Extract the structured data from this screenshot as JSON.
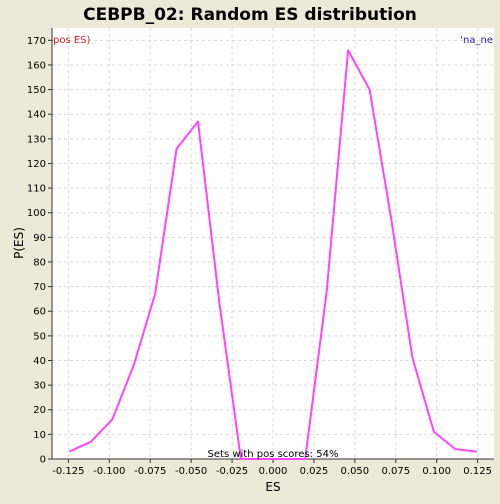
{
  "colors": {
    "background": "#ece9d8",
    "plot_background": "#ffffff",
    "line": "#ff44ff",
    "grid": "#d8d8d8",
    "left_label": "#cc2222",
    "right_label": "#2222bb",
    "axis": "#333333"
  },
  "chart_data": {
    "type": "line",
    "title": "CEBPB_02: Random ES distribution",
    "xlabel": "ES",
    "ylabel": "P(ES)",
    "xlim": [
      -0.135,
      0.135
    ],
    "ylim": [
      0,
      175
    ],
    "grid": true,
    "x_ticks": [
      "-0.125",
      "-0.100",
      "-0.075",
      "-0.050",
      "-0.025",
      "0.000",
      "0.025",
      "0.050",
      "0.075",
      "0.100",
      "0.125"
    ],
    "x_tick_values": [
      -0.125,
      -0.1,
      -0.075,
      -0.05,
      -0.025,
      0,
      0.025,
      0.05,
      0.075,
      0.1,
      0.125
    ],
    "y_ticks": [
      0,
      10,
      20,
      30,
      40,
      50,
      60,
      70,
      80,
      90,
      100,
      110,
      120,
      130,
      140,
      150,
      160,
      170
    ],
    "series": [
      {
        "x": [
          -0.1245,
          -0.1113,
          -0.0982,
          -0.0851,
          -0.072,
          -0.0589,
          -0.0458,
          -0.0327,
          -0.0196,
          -0.0065,
          0.0066,
          0.0197,
          0.0328,
          0.0459,
          0.059,
          0.0721,
          0.0852,
          0.0983,
          0.1114,
          0.1245
        ],
        "y": [
          3,
          7,
          16,
          38,
          67,
          126,
          137,
          63,
          0,
          0,
          0,
          0,
          68,
          166,
          150,
          98,
          41,
          11,
          4,
          3
        ]
      }
    ],
    "annotations": {
      "left": "pos ES)",
      "right": "'na_ne",
      "bottom": "Sets with pos scores: 54%"
    }
  }
}
